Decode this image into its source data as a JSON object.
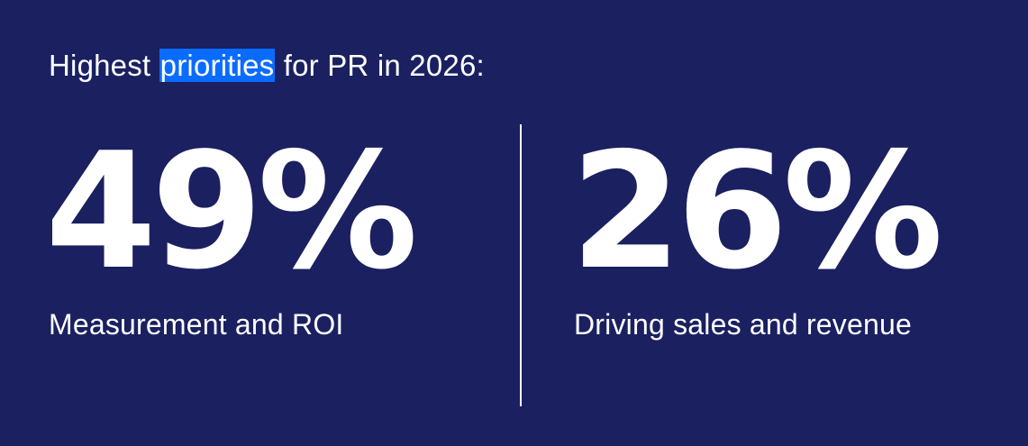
{
  "header": {
    "text_before": "Highest ",
    "highlighted": "priorities",
    "text_after": " for PR in 2026:"
  },
  "stats": [
    {
      "value": "49%",
      "label": "Measurement and ROI"
    },
    {
      "value": "26%",
      "label": "Driving sales and revenue"
    }
  ],
  "colors": {
    "background": "#1a2060",
    "text": "#ffffff",
    "selection_highlight": "#0a6cff"
  }
}
